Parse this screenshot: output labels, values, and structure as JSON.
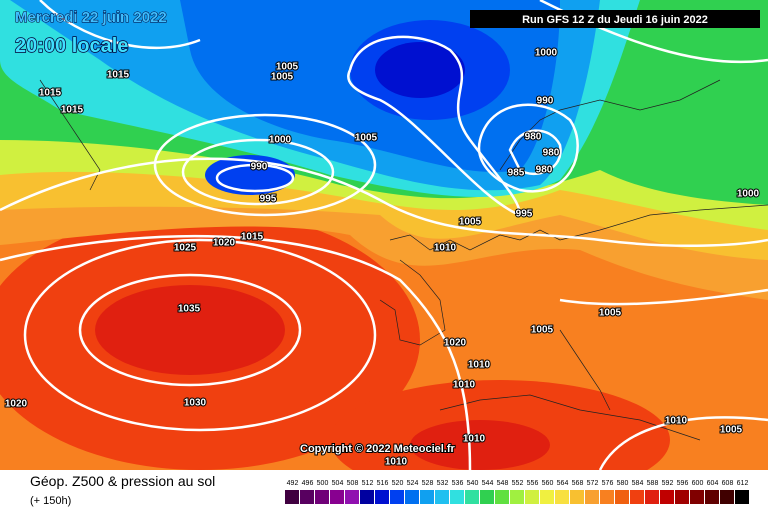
{
  "header": {
    "date": "Mercredi 22 juin 2022",
    "time": "20:00 locale",
    "run": "Run GFS 12 Z du Jeudi 16 juin 2022"
  },
  "copyright": "Copyright © 2022 Meteociel.fr",
  "footer": {
    "title": "Géop. Z500 & pression au sol",
    "lead": "(+ 150h)"
  },
  "isobar_labels": [
    1015,
    1015,
    1015,
    1005,
    1005,
    1005,
    1000,
    990,
    995,
    1000,
    990,
    980,
    980,
    980,
    985,
    995,
    1005,
    1010,
    1025,
    1020,
    1015,
    1035,
    1030,
    1020,
    1020,
    1010,
    1010,
    1005,
    1005,
    1000,
    1010,
    1010,
    1010,
    1005
  ],
  "legend": {
    "levels": [
      492,
      496,
      500,
      504,
      508,
      512,
      516,
      520,
      524,
      528,
      532,
      536,
      540,
      544,
      548,
      552,
      556,
      560,
      564,
      568,
      572,
      576,
      580,
      584,
      588,
      592,
      596,
      600,
      604,
      608,
      612
    ],
    "colors": [
      "#400040",
      "#580060",
      "#700078",
      "#880090",
      "#9010b0",
      "#0000a0",
      "#0010d0",
      "#0040f0",
      "#0070f0",
      "#10a0f0",
      "#20c0f0",
      "#30e0e0",
      "#30e0a0",
      "#30d050",
      "#60e040",
      "#a0f040",
      "#d0f040",
      "#f0f040",
      "#f8e040",
      "#f8c030",
      "#f8a030",
      "#f88020",
      "#f06010",
      "#f04010",
      "#e02010",
      "#c00000",
      "#a00000",
      "#800000",
      "#600000",
      "#400000",
      "#000000"
    ]
  }
}
